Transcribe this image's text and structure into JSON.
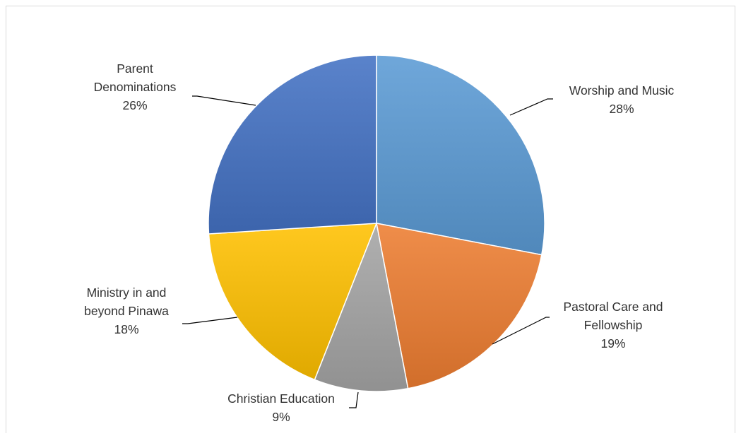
{
  "chart_data": {
    "type": "pie",
    "slices": [
      {
        "label_lines": [
          "Worship and Music"
        ],
        "percent_label": "28%",
        "value": 28,
        "color": "#5B9BD5"
      },
      {
        "label_lines": [
          "Pastoral Care and",
          "Fellowship"
        ],
        "percent_label": "19%",
        "value": 19,
        "color": "#ED7D31"
      },
      {
        "label_lines": [
          "Christian Education"
        ],
        "percent_label": "9%",
        "value": 9,
        "color": "#A5A5A5"
      },
      {
        "label_lines": [
          "Ministry in and",
          "beyond Pinawa"
        ],
        "percent_label": "18%",
        "value": 18,
        "color": "#FFC000"
      },
      {
        "label_lines": [
          "Parent",
          "Denominations"
        ],
        "percent_label": "26%",
        "value": 26,
        "color": "#4472C4"
      }
    ]
  }
}
